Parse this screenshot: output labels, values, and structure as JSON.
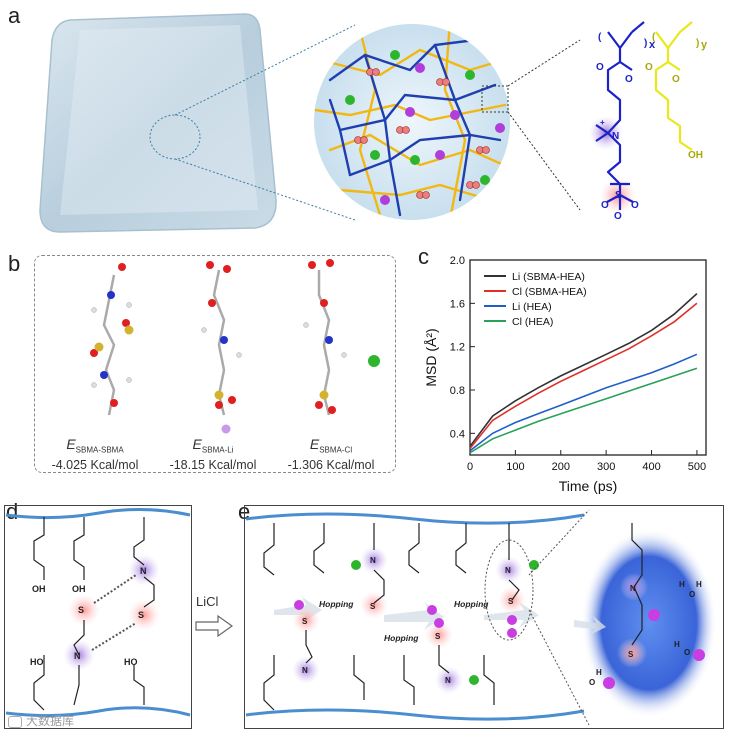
{
  "panels": {
    "a": {
      "letter": "a"
    },
    "b": {
      "letter": "b",
      "energies": [
        {
          "symbol": "E",
          "sub": "SBMA-SBMA",
          "value": "-4.025 Kcal/mol"
        },
        {
          "symbol": "E",
          "sub": "SBMA-Li",
          "value": "-18.15 Kcal/mol"
        },
        {
          "symbol": "E",
          "sub": "SBMA-Cl",
          "value": "-1.306 Kcal/mol"
        }
      ]
    },
    "c": {
      "letter": "c"
    },
    "d": {
      "letter": "d",
      "arrow_label": "LiCl"
    },
    "e": {
      "letter": "e",
      "hopping_labels": [
        "Hopping",
        "Hopping",
        "Hopping"
      ]
    }
  },
  "polymer_labels": {
    "x": "x",
    "y": "y",
    "oh": "OH"
  },
  "watermark": "大数据库",
  "colors": {
    "blue_chain": "#1f3fb0",
    "yellow_chain": "#f1b814",
    "sbma_blue": "#1a22c8",
    "hea_yellow": "#e8e81a",
    "red": "#e02020",
    "green": "#2db52d",
    "purple": "#9b2bd6",
    "chart_black": "#333333",
    "chart_red": "#e0302a",
    "chart_blue": "#1f5fc8",
    "chart_green": "#2aa05a"
  },
  "chart_data": {
    "type": "line",
    "xlabel": "Time (ps)",
    "ylabel": "MSD (Å²)",
    "xlim": [
      0,
      520
    ],
    "ylim": [
      0.2,
      2.0
    ],
    "xticks": [
      0,
      100,
      200,
      300,
      400,
      500
    ],
    "yticks": [
      0.4,
      0.8,
      1.2,
      1.6,
      2.0
    ],
    "ytick_labels": [
      "0.4",
      "0.8",
      "1.2",
      "1.6",
      "2.0"
    ],
    "legend_position": "top-left",
    "x": [
      0,
      50,
      100,
      150,
      200,
      250,
      300,
      350,
      400,
      450,
      500
    ],
    "series": [
      {
        "name": "Li (SBMA-HEA)",
        "color": "#333333",
        "values": [
          0.28,
          0.56,
          0.7,
          0.82,
          0.93,
          1.03,
          1.13,
          1.23,
          1.35,
          1.5,
          1.69
        ]
      },
      {
        "name": "Cl (SBMA-HEA)",
        "color": "#e0302a",
        "values": [
          0.26,
          0.52,
          0.65,
          0.77,
          0.88,
          0.98,
          1.08,
          1.18,
          1.3,
          1.43,
          1.6
        ]
      },
      {
        "name": "Li (HEA)",
        "color": "#1f5fc8",
        "values": [
          0.24,
          0.4,
          0.5,
          0.58,
          0.66,
          0.74,
          0.82,
          0.89,
          0.96,
          1.04,
          1.13
        ]
      },
      {
        "name": "Cl (HEA)",
        "color": "#2aa05a",
        "values": [
          0.22,
          0.35,
          0.43,
          0.51,
          0.58,
          0.65,
          0.72,
          0.79,
          0.86,
          0.93,
          1.0
        ]
      }
    ]
  }
}
